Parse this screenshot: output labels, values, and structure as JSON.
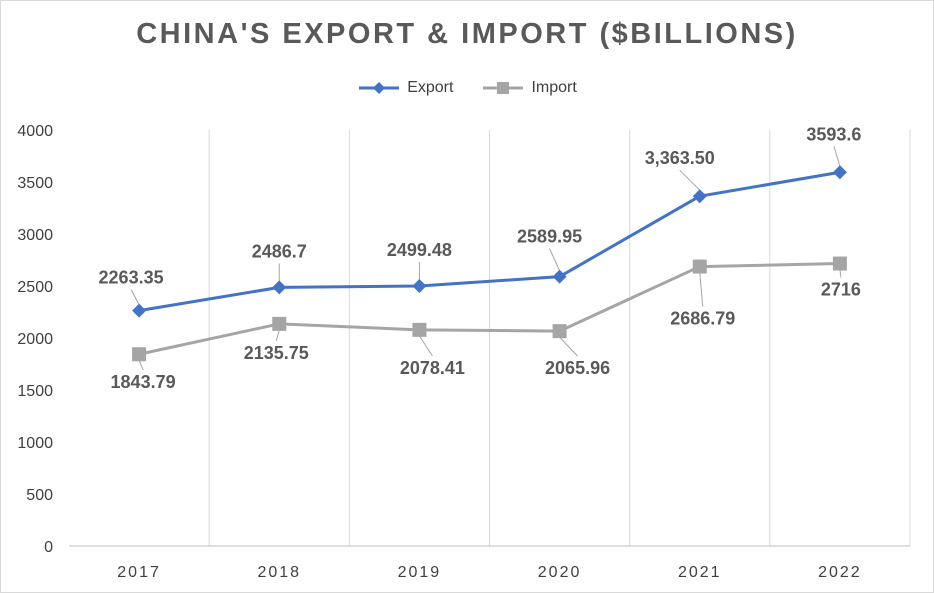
{
  "chart_data": {
    "type": "line",
    "title": "CHINA'S EXPORT & IMPORT ($BILLIONS)",
    "categories": [
      "2017",
      "2018",
      "2019",
      "2020",
      "2021",
      "2022"
    ],
    "series": [
      {
        "name": "Export",
        "color": "#4472c4",
        "marker": "diamond",
        "values": [
          2263.35,
          2486.7,
          2499.48,
          2589.95,
          3363.5,
          3593.6
        ],
        "labels": [
          "2263.35",
          "2486.7",
          "2499.48",
          "2589.95",
          "3,363.50",
          "3593.6"
        ]
      },
      {
        "name": "Import",
        "color": "#a5a5a5",
        "marker": "square",
        "values": [
          1843.79,
          2135.75,
          2078.41,
          2065.96,
          2686.79,
          2716
        ],
        "labels": [
          "1843.79",
          "2135.75",
          "2078.41",
          "2065.96",
          "2686.79",
          "2716"
        ]
      }
    ],
    "ylim": [
      0,
      4000
    ],
    "yticks": [
      "0",
      "500",
      "1000",
      "1500",
      "2000",
      "2500",
      "3000",
      "3500",
      "4000"
    ],
    "xlabel": "",
    "ylabel": "",
    "grid": "vertical",
    "legend": "top-center"
  }
}
